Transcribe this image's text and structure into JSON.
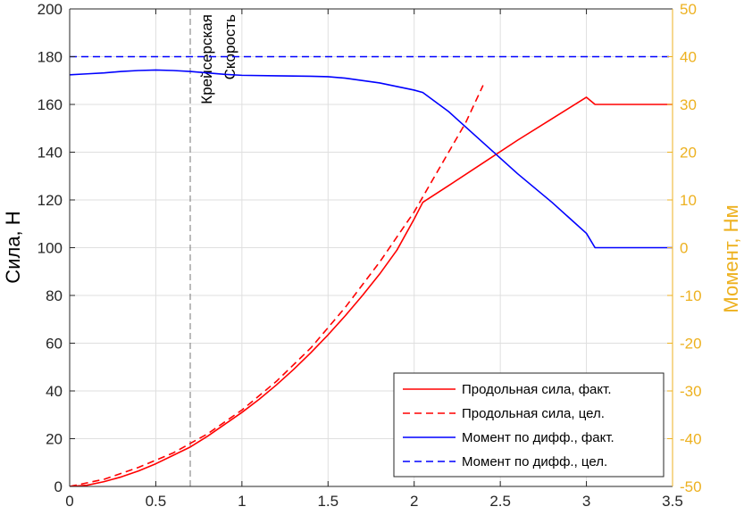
{
  "chart_data": {
    "type": "line",
    "xlim": [
      0,
      3.5
    ],
    "x_ticks": [
      "0",
      "0.5",
      "1",
      "1.5",
      "2",
      "2.5",
      "3",
      "3.5"
    ],
    "y_left": {
      "label": "Сила, Н",
      "lim": [
        0,
        200
      ],
      "ticks": [
        "0",
        "20",
        "40",
        "60",
        "80",
        "100",
        "120",
        "140",
        "160",
        "180",
        "200"
      ]
    },
    "y_right": {
      "label": "Момент, Нм",
      "lim": [
        -50,
        50
      ],
      "ticks": [
        "-50",
        "-40",
        "-30",
        "-20",
        "-10",
        "0",
        "10",
        "20",
        "30",
        "40",
        "50"
      ],
      "color": "#EDB120"
    },
    "grid": true,
    "legend_position": "bottom-right",
    "annotation": {
      "x": 0.7,
      "text_lines": [
        "Крейсерская",
        "Скорость"
      ]
    },
    "series": [
      {
        "name": "Продольная сила, факт.",
        "axis": "left",
        "color": "#ff0000",
        "dash": "solid",
        "x": [
          0,
          0.1,
          0.2,
          0.3,
          0.4,
          0.5,
          0.6,
          0.7,
          0.8,
          0.9,
          1.0,
          1.1,
          1.2,
          1.3,
          1.4,
          1.5,
          1.6,
          1.7,
          1.8,
          1.9,
          2.0,
          2.05,
          2.2,
          2.4,
          2.6,
          2.8,
          3.0,
          3.05,
          3.2,
          3.5
        ],
        "y": [
          0,
          0.5,
          2,
          4,
          6.5,
          9.5,
          13,
          16.5,
          21,
          26,
          31,
          36.5,
          42.5,
          49,
          56,
          63.5,
          71.5,
          80,
          89,
          99,
          112,
          119,
          126,
          135.5,
          145,
          154,
          163,
          160,
          160,
          160
        ]
      },
      {
        "name": "Продольная сила, цел.",
        "axis": "left",
        "color": "#ff0000",
        "dash": "dashed",
        "x": [
          0,
          0.2,
          0.4,
          0.6,
          0.8,
          1.0,
          1.2,
          1.4,
          1.6,
          1.8,
          2.0,
          2.2,
          2.3,
          2.4
        ],
        "y": [
          0,
          3,
          8,
          14,
          22,
          32,
          44,
          58,
          75,
          94,
          115,
          140,
          152.5,
          168
        ]
      },
      {
        "name": "Момент по дифф., факт.",
        "axis": "right",
        "color": "#0000ff",
        "dash": "solid",
        "x": [
          0,
          0.1,
          0.2,
          0.3,
          0.4,
          0.5,
          0.6,
          0.7,
          0.8,
          0.9,
          1.0,
          1.2,
          1.4,
          1.5,
          1.6,
          1.8,
          2.0,
          2.05,
          2.2,
          2.4,
          2.6,
          2.8,
          3.0,
          3.05,
          3.5
        ],
        "y": [
          36.2,
          36.4,
          36.6,
          36.9,
          37.1,
          37.2,
          37.1,
          36.9,
          36.6,
          36.3,
          36.1,
          36.0,
          35.9,
          35.8,
          35.5,
          34.5,
          33.0,
          32.5,
          28.5,
          22.0,
          15.5,
          9.5,
          3.0,
          0,
          0
        ]
      },
      {
        "name": "Момент по дифф., цел.",
        "axis": "right",
        "color": "#0000ff",
        "dash": "dashed",
        "x": [
          0,
          3.5
        ],
        "y": [
          40,
          40
        ]
      }
    ]
  }
}
